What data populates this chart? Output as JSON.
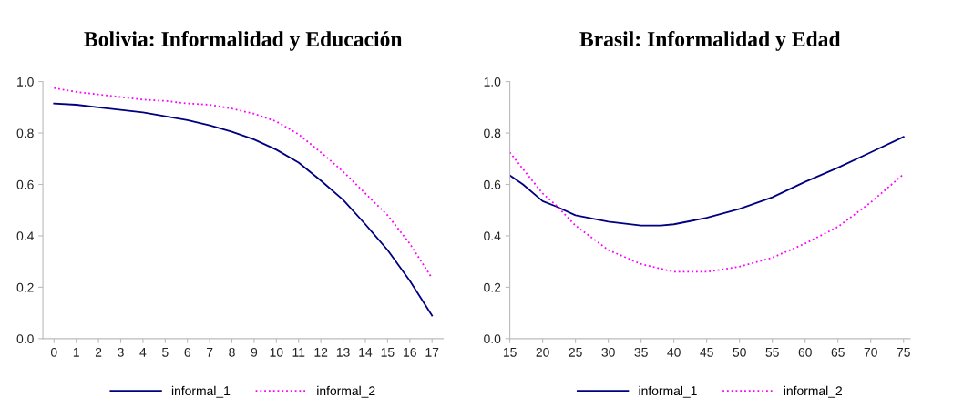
{
  "chart_data": [
    {
      "type": "line",
      "title": "Bolivia: Informalidad y Educación",
      "categories": [
        "0",
        "1",
        "2",
        "3",
        "4",
        "5",
        "6",
        "7",
        "8",
        "9",
        "10",
        "11",
        "12",
        "13",
        "14",
        "15",
        "16",
        "17"
      ],
      "ylim": [
        0,
        1
      ],
      "yticks": [
        {
          "value": 0,
          "label": "0.0"
        },
        {
          "value": 0.2,
          "label": "0.2"
        },
        {
          "value": 0.4,
          "label": "0.4"
        },
        {
          "value": 0.6,
          "label": "0.6"
        },
        {
          "value": 0.8,
          "label": "0.8"
        },
        {
          "value": 1,
          "label": "1.0"
        }
      ],
      "grid": false,
      "legend": "bottom",
      "marker": "none",
      "series": [
        {
          "name": "informal_1",
          "color": "#000080",
          "line_style": "solid",
          "values": [
            0.915,
            0.91,
            0.9,
            0.89,
            0.88,
            0.865,
            0.85,
            0.83,
            0.805,
            0.775,
            0.735,
            0.685,
            0.615,
            0.54,
            0.445,
            0.345,
            0.225,
            0.09
          ]
        },
        {
          "name": "informal_2",
          "color": "#ff00ff",
          "line_style": "dotted",
          "values": [
            0.975,
            0.96,
            0.95,
            0.94,
            0.93,
            0.925,
            0.915,
            0.91,
            0.895,
            0.875,
            0.845,
            0.795,
            0.725,
            0.65,
            0.565,
            0.48,
            0.37,
            0.235
          ]
        }
      ]
    },
    {
      "type": "line",
      "title": "Brasil: Informalidad y Edad",
      "xlim": [
        15,
        76
      ],
      "xticks": [
        15,
        20,
        25,
        30,
        35,
        40,
        45,
        50,
        55,
        60,
        65,
        70,
        75
      ],
      "ylim": [
        0,
        1
      ],
      "yticks": [
        {
          "value": 0,
          "label": "0.0"
        },
        {
          "value": 0.2,
          "label": "0.2"
        },
        {
          "value": 0.4,
          "label": "0.4"
        },
        {
          "value": 0.6,
          "label": "0.6"
        },
        {
          "value": 0.8,
          "label": "0.8"
        },
        {
          "value": 1,
          "label": "1.0"
        }
      ],
      "grid": false,
      "legend": "bottom",
      "marker": "none",
      "series": [
        {
          "name": "informal_1",
          "color": "#000080",
          "line_style": "solid",
          "x": [
            15,
            17,
            20,
            22,
            25,
            30,
            35,
            38,
            40,
            45,
            50,
            55,
            60,
            65,
            70,
            75
          ],
          "values": [
            0.635,
            0.6,
            0.535,
            0.515,
            0.48,
            0.455,
            0.44,
            0.44,
            0.445,
            0.47,
            0.505,
            0.55,
            0.61,
            0.665,
            0.725,
            0.785
          ]
        },
        {
          "name": "informal_2",
          "color": "#ff00ff",
          "line_style": "dotted",
          "x": [
            15,
            17,
            20,
            22,
            25,
            30,
            35,
            40,
            45,
            50,
            55,
            60,
            65,
            70,
            75
          ],
          "values": [
            0.725,
            0.66,
            0.565,
            0.52,
            0.44,
            0.345,
            0.29,
            0.26,
            0.26,
            0.28,
            0.315,
            0.37,
            0.435,
            0.53,
            0.64
          ]
        }
      ]
    }
  ]
}
